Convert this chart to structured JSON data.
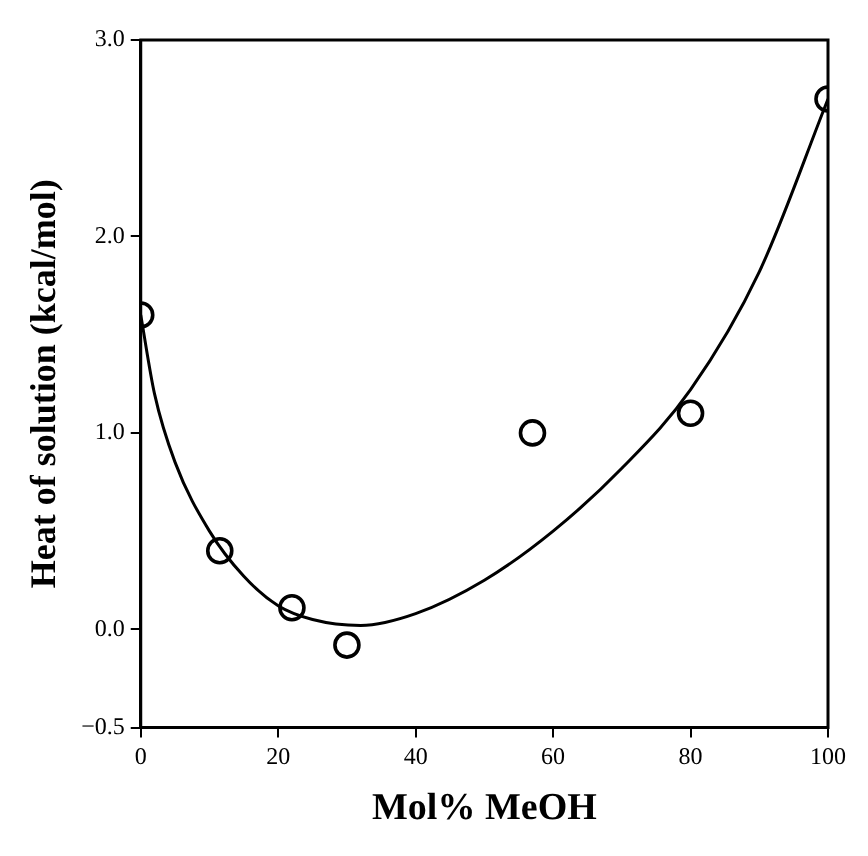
{
  "chart_data": {
    "type": "scatter",
    "xlabel": "Mol% MeOH",
    "ylabel": "Heat of solution (kcal/mol)",
    "xlim": [
      0,
      100
    ],
    "xticks": [
      0,
      20,
      40,
      60,
      80,
      100
    ],
    "ylim": [
      -0.5,
      3.0
    ],
    "yticks": [
      {
        "value": -0.5,
        "label": "−0.5"
      },
      {
        "value": 0,
        "label": "0.0"
      },
      {
        "value": 1,
        "label": "1.0"
      },
      {
        "value": 2,
        "label": "2.0"
      },
      {
        "value": 3,
        "label": "3.0"
      }
    ],
    "grid": false,
    "legend": false,
    "marker": "circle",
    "series": [
      {
        "type": "scatter",
        "color": "#000000",
        "x": [
          0,
          11.5,
          22,
          30,
          57,
          80,
          100
        ],
        "values": [
          1.6,
          0.4,
          0.11,
          -0.08,
          1.0,
          1.1,
          2.7
        ]
      },
      {
        "type": "line",
        "color": "#000000",
        "marker": "none",
        "x": [
          0,
          2,
          5,
          10,
          15,
          20,
          25,
          32,
          40,
          50,
          60,
          70,
          80,
          90,
          100
        ],
        "values": [
          1.6,
          1.2,
          0.85,
          0.5,
          0.27,
          0.12,
          0.05,
          0.02,
          0.08,
          0.25,
          0.5,
          0.82,
          1.22,
          1.82,
          2.7
        ]
      }
    ]
  }
}
